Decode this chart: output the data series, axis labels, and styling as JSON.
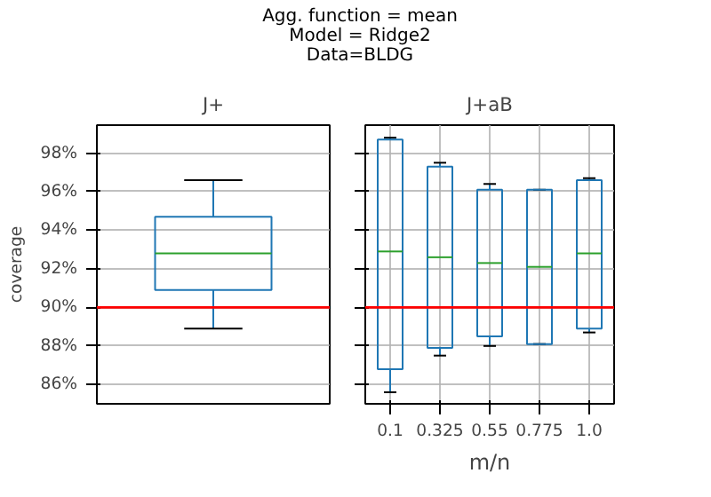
{
  "chart_data": [
    {
      "type": "box",
      "title": "J+",
      "ylabel": "coverage",
      "categories": [
        null
      ],
      "annotations": [
        "Agg. function = mean\nModel = Ridge2\nData=BLDG"
      ],
      "series": [
        {
          "color": "#1f77b4",
          "boxes": [
            {
              "low": 88.9,
              "q1": 90.9,
              "median": 92.8,
              "q3": 94.7,
              "high": 96.6
            }
          ]
        }
      ],
      "ylim": [
        85,
        99.45
      ],
      "yticks": [
        {
          "value": 86,
          "label": "86%"
        },
        {
          "value": 88,
          "label": "88%"
        },
        {
          "value": 90,
          "label": "90%"
        },
        {
          "value": 92,
          "label": "92%"
        },
        {
          "value": 94,
          "label": "94%"
        },
        {
          "value": 96,
          "label": "96%"
        },
        {
          "value": 98,
          "label": "98%"
        }
      ],
      "ref_lines": [
        {
          "axis": "y",
          "value": 90,
          "color": "#ff0000"
        }
      ],
      "grid": "y",
      "tick_labels": "y"
    },
    {
      "type": "box",
      "title": "J+aB",
      "xlabel": "m/n",
      "categories": [
        "0.1",
        "0.325",
        "0.55",
        "0.775",
        "1.0"
      ],
      "series": [
        {
          "color": "#1f77b4",
          "boxes": [
            {
              "low": 85.6,
              "q1": 86.8,
              "median": 92.9,
              "q3": 98.7,
              "high": 98.8
            },
            {
              "low": 87.5,
              "q1": 87.9,
              "median": 92.6,
              "q3": 97.3,
              "high": 97.5
            },
            {
              "low": 88.0,
              "q1": 88.5,
              "median": 92.3,
              "q3": 96.1,
              "high": 96.4
            },
            {
              "low": 88.1,
              "q1": 88.1,
              "median": 92.1,
              "q3": 96.1,
              "high": 96.1
            },
            {
              "low": 88.7,
              "q1": 88.9,
              "median": 92.8,
              "q3": 96.6,
              "high": 96.7
            }
          ]
        }
      ],
      "ylim": [
        85,
        99.45
      ],
      "yticks": [
        {
          "value": 86,
          "label": null
        },
        {
          "value": 88,
          "label": null
        },
        {
          "value": 90,
          "label": null
        },
        {
          "value": 92,
          "label": null
        },
        {
          "value": 94,
          "label": null
        },
        {
          "value": 96,
          "label": null
        },
        {
          "value": 98,
          "label": null
        }
      ],
      "ref_lines": [
        {
          "axis": "y",
          "value": 90,
          "color": "#ff0000"
        }
      ],
      "grid": true,
      "tick_labels": "x"
    }
  ]
}
